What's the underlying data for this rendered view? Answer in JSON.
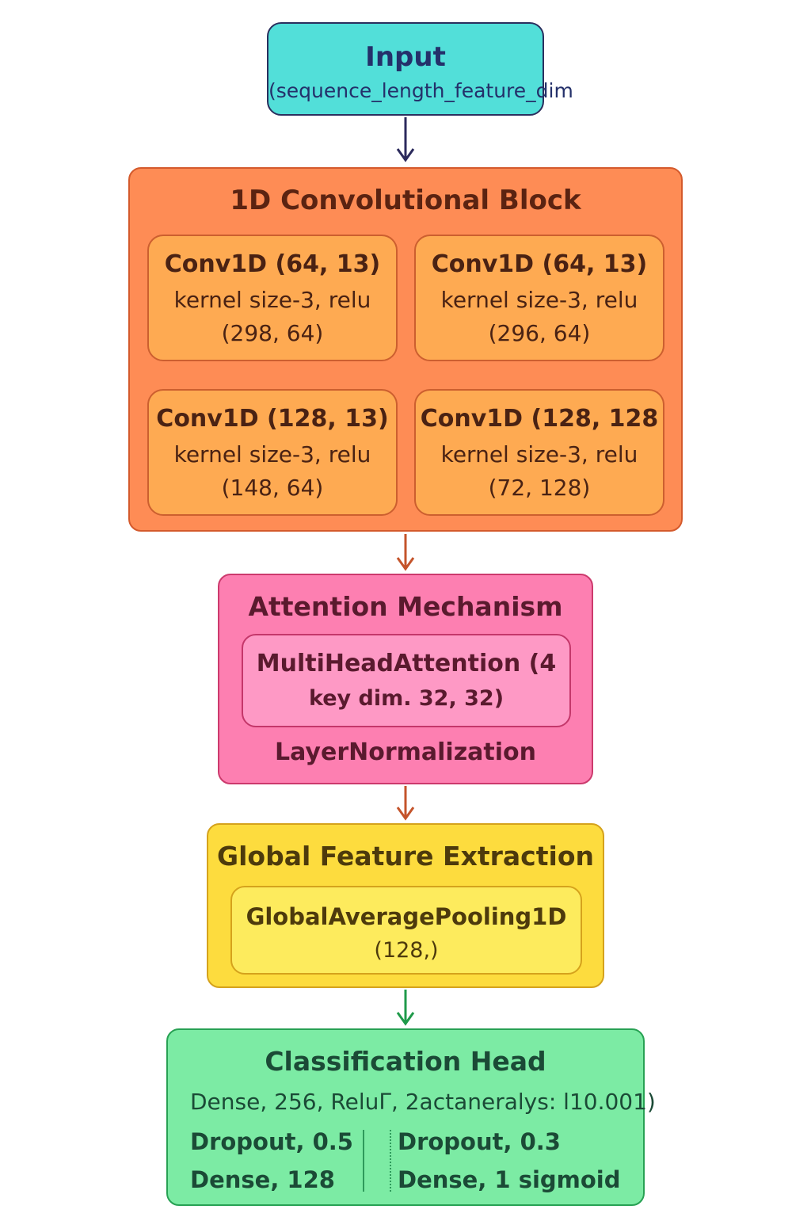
{
  "input": {
    "title": "Input",
    "subtitle": "(sequence_length_feature_dim"
  },
  "conv_block": {
    "title": "1D Convolutional Block",
    "cells": [
      {
        "line1": "Conv1D (64,  13)",
        "line2": "kernel size-3, relu",
        "line3": "(298, 64)"
      },
      {
        "line1": "Conv1D (64, 13)",
        "line2": "kernel size-3, relu",
        "line3": "(296, 64)"
      },
      {
        "line1": "Conv1D (128, 13)",
        "line2": "kernel size-3, relu",
        "line3": "(148, 64)"
      },
      {
        "line1": "Conv1D (128, 128",
        "line2": "kernel size-3, relu",
        "line3": "(72, 128)"
      }
    ]
  },
  "attention": {
    "title": "Attention Mechanism",
    "mha_line1": "MultiHeadAttention (4",
    "mha_line2": "key dim. 32, 32)",
    "layernorm": "LayerNormalization"
  },
  "global_features": {
    "title": "Global Feature Extraction",
    "gap_line1": "GlobalAveragePooling1D",
    "gap_line2": "(128,)"
  },
  "classification": {
    "title": "Classification Head",
    "dense1": "Dense, 256, Reluᒥ, 2actaneralys: l10.001)",
    "dropout1": "Dropout, 0.5",
    "dense2": "Dense, 128",
    "dropout2": "Dropout, 0.3",
    "dense3": "Dense, 1 sigmoid"
  },
  "colors": {
    "input_fill": "#52dfd9",
    "conv_fill": "#fe8c55",
    "conv_cell_fill": "#feaa52",
    "attention_fill": "#fd7fb1",
    "global_fill": "#fddc3e",
    "classification_fill": "#7ceba4"
  }
}
